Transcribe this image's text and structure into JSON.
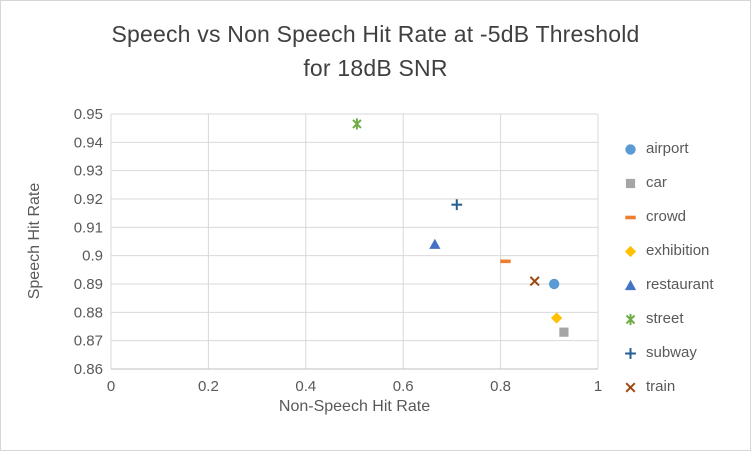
{
  "title": {
    "line1": "Speech vs Non Speech Hit Rate at -5dB Threshold",
    "line2": "for 18dB SNR"
  },
  "chart_data": {
    "type": "scatter",
    "title": "Speech vs Non Speech Hit Rate at -5dB Threshold for 18dB SNR",
    "xlabel": "Non-Speech Hit Rate",
    "ylabel": "Speech Hit Rate",
    "xlim": [
      0,
      1
    ],
    "ylim": [
      0.86,
      0.95
    ],
    "x_ticks": [
      0,
      0.2,
      0.4,
      0.6,
      0.8,
      1
    ],
    "x_tick_labels": [
      "0",
      "0.2",
      "0.4",
      "0.6",
      "0.8",
      "1"
    ],
    "y_ticks": [
      0.86,
      0.87,
      0.88,
      0.89,
      0.9,
      0.91,
      0.92,
      0.93,
      0.94,
      0.95
    ],
    "y_tick_labels": [
      "0.86",
      "0.87",
      "0.88",
      "0.89",
      "0.9",
      "0.91",
      "0.92",
      "0.93",
      "0.94",
      "0.95"
    ],
    "grid": true,
    "legend_position": "right",
    "colors": {
      "gridline": "#D9D9D9",
      "axis_line": "#BFBFBF",
      "tick_text": "#595959",
      "title_text": "#404040"
    },
    "series": [
      {
        "name": "airport",
        "marker": "circle",
        "color": "#5B9BD5",
        "points": [
          [
            0.91,
            0.89
          ]
        ]
      },
      {
        "name": "car",
        "marker": "square",
        "color": "#A5A5A5",
        "points": [
          [
            0.93,
            0.873
          ]
        ]
      },
      {
        "name": "crowd",
        "marker": "dash",
        "color": "#ED7D31",
        "points": [
          [
            0.81,
            0.898
          ]
        ]
      },
      {
        "name": "exhibition",
        "marker": "diamond",
        "color": "#FFC000",
        "points": [
          [
            0.915,
            0.878
          ]
        ]
      },
      {
        "name": "restaurant",
        "marker": "triangle",
        "color": "#4472C4",
        "points": [
          [
            0.665,
            0.904
          ]
        ]
      },
      {
        "name": "street",
        "marker": "star",
        "color": "#70AD47",
        "points": [
          [
            0.505,
            0.9465
          ]
        ]
      },
      {
        "name": "subway",
        "marker": "plus",
        "color": "#255E91",
        "points": [
          [
            0.71,
            0.918
          ]
        ]
      },
      {
        "name": "train",
        "marker": "x",
        "color": "#9E480E",
        "points": [
          [
            0.87,
            0.891
          ]
        ]
      }
    ]
  }
}
